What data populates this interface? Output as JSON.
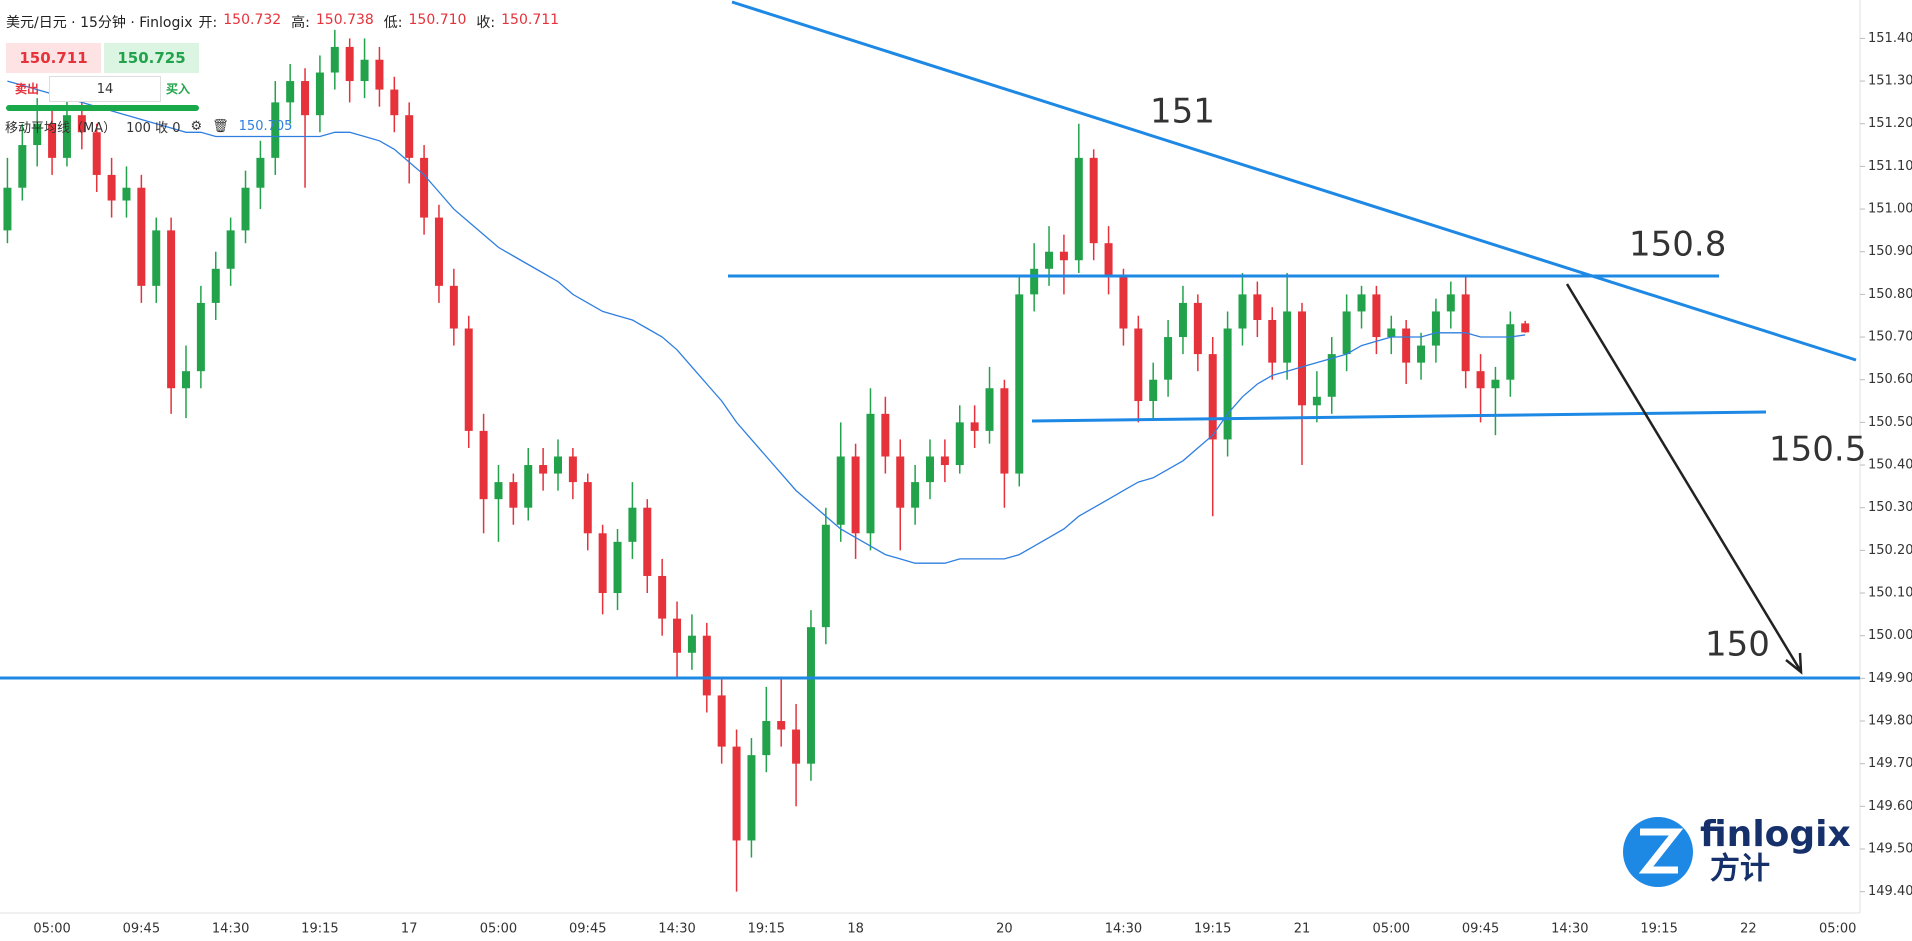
{
  "chart_data": {
    "type": "candlestick",
    "up_color": "#22a34b",
    "down_color": "#e5323b",
    "ylim": [
      149.35,
      151.49
    ],
    "yticks": [
      {
        "value": 149.4,
        "label": "149.400"
      },
      {
        "value": 149.5,
        "label": "149.500"
      },
      {
        "value": 149.6,
        "label": "149.600"
      },
      {
        "value": 149.7,
        "label": "149.700"
      },
      {
        "value": 149.8,
        "label": "149.800"
      },
      {
        "value": 149.9,
        "label": "149.900"
      },
      {
        "value": 150.0,
        "label": "150.000"
      },
      {
        "value": 150.1,
        "label": "150.100"
      },
      {
        "value": 150.2,
        "label": "150.200"
      },
      {
        "value": 150.3,
        "label": "150.300"
      },
      {
        "value": 150.4,
        "label": "150.400"
      },
      {
        "value": 150.5,
        "label": "150.500"
      },
      {
        "value": 150.6,
        "label": "150.600"
      },
      {
        "value": 150.7,
        "label": "150.700"
      },
      {
        "value": 150.8,
        "label": "150.800"
      },
      {
        "value": 150.9,
        "label": "150.900"
      },
      {
        "value": 151.0,
        "label": "151.000"
      },
      {
        "value": 151.1,
        "label": "151.100"
      },
      {
        "value": 151.2,
        "label": "151.200"
      },
      {
        "value": 151.3,
        "label": "151.300"
      },
      {
        "value": 151.4,
        "label": "151.400"
      }
    ],
    "categories": [
      null,
      null,
      null,
      "05:00",
      null,
      null,
      null,
      null,
      null,
      "09:45",
      null,
      null,
      null,
      null,
      null,
      "14:30",
      null,
      null,
      null,
      null,
      null,
      "19:15",
      null,
      null,
      null,
      null,
      null,
      "17",
      null,
      null,
      null,
      null,
      null,
      "05:00",
      null,
      null,
      null,
      null,
      null,
      "09:45",
      null,
      null,
      null,
      null,
      null,
      "14:30",
      null,
      null,
      null,
      null,
      null,
      "19:15",
      null,
      null,
      null,
      null,
      null,
      "18",
      null,
      null,
      null,
      null,
      null,
      null,
      null,
      null,
      null,
      "20",
      null,
      null,
      null,
      null,
      null,
      null,
      null,
      "14:30",
      null,
      null,
      null,
      null,
      null,
      "19:15",
      null,
      null,
      null,
      null,
      null,
      "21",
      null,
      null,
      null,
      null,
      null,
      "05:00",
      null,
      null,
      null,
      null,
      null,
      "09:45",
      null,
      null,
      null,
      null,
      null,
      "14:30",
      null,
      null,
      null,
      null,
      null,
      "19:15",
      null,
      null,
      null,
      null,
      null,
      "22",
      null,
      null,
      null,
      null,
      null,
      "05:00",
      null
    ],
    "ohlc": [
      [
        150.95,
        151.12,
        150.92,
        151.05
      ],
      [
        151.05,
        151.2,
        151.02,
        151.15
      ],
      [
        151.15,
        151.26,
        151.1,
        151.2
      ],
      [
        151.2,
        151.24,
        151.08,
        151.12
      ],
      [
        151.12,
        151.27,
        151.1,
        151.22
      ],
      [
        151.22,
        151.25,
        151.14,
        151.18
      ],
      [
        151.18,
        151.2,
        151.04,
        151.08
      ],
      [
        151.08,
        151.12,
        150.98,
        151.02
      ],
      [
        151.02,
        151.1,
        150.98,
        151.05
      ],
      [
        151.05,
        151.08,
        150.78,
        150.82
      ],
      [
        150.82,
        150.98,
        150.78,
        150.95
      ],
      [
        150.95,
        150.98,
        150.52,
        150.58
      ],
      [
        150.58,
        150.68,
        150.51,
        150.62
      ],
      [
        150.62,
        150.82,
        150.58,
        150.78
      ],
      [
        150.78,
        150.9,
        150.74,
        150.86
      ],
      [
        150.86,
        150.98,
        150.82,
        150.95
      ],
      [
        150.95,
        151.09,
        150.92,
        151.05
      ],
      [
        151.05,
        151.16,
        151.0,
        151.12
      ],
      [
        151.12,
        151.3,
        151.08,
        151.25
      ],
      [
        151.25,
        151.34,
        151.2,
        151.3
      ],
      [
        151.3,
        151.33,
        151.05,
        151.22
      ],
      [
        151.22,
        151.36,
        151.18,
        151.32
      ],
      [
        151.32,
        151.42,
        151.28,
        151.38
      ],
      [
        151.38,
        151.4,
        151.25,
        151.3
      ],
      [
        151.3,
        151.4,
        151.26,
        151.35
      ],
      [
        151.35,
        151.38,
        151.24,
        151.28
      ],
      [
        151.28,
        151.31,
        151.18,
        151.22
      ],
      [
        151.22,
        151.25,
        151.06,
        151.12
      ],
      [
        151.12,
        151.15,
        150.94,
        150.98
      ],
      [
        150.98,
        151.01,
        150.78,
        150.82
      ],
      [
        150.82,
        150.86,
        150.68,
        150.72
      ],
      [
        150.72,
        150.75,
        150.44,
        150.48
      ],
      [
        150.48,
        150.52,
        150.24,
        150.32
      ],
      [
        150.32,
        150.4,
        150.22,
        150.36
      ],
      [
        150.36,
        150.38,
        150.26,
        150.3
      ],
      [
        150.3,
        150.44,
        150.27,
        150.4
      ],
      [
        150.4,
        150.44,
        150.34,
        150.38
      ],
      [
        150.38,
        150.46,
        150.34,
        150.42
      ],
      [
        150.42,
        150.44,
        150.32,
        150.36
      ],
      [
        150.36,
        150.38,
        150.2,
        150.24
      ],
      [
        150.24,
        150.26,
        150.05,
        150.1
      ],
      [
        150.1,
        150.25,
        150.06,
        150.22
      ],
      [
        150.22,
        150.36,
        150.18,
        150.3
      ],
      [
        150.3,
        150.32,
        150.1,
        150.14
      ],
      [
        150.14,
        150.18,
        150.0,
        150.04
      ],
      [
        150.04,
        150.08,
        149.9,
        149.96
      ],
      [
        149.96,
        150.05,
        149.92,
        150.0
      ],
      [
        150.0,
        150.03,
        149.82,
        149.86
      ],
      [
        149.86,
        149.9,
        149.7,
        149.74
      ],
      [
        149.74,
        149.78,
        149.4,
        149.52
      ],
      [
        149.52,
        149.76,
        149.48,
        149.72
      ],
      [
        149.72,
        149.88,
        149.68,
        149.8
      ],
      [
        149.8,
        149.9,
        149.74,
        149.78
      ],
      [
        149.78,
        149.84,
        149.6,
        149.7
      ],
      [
        149.7,
        150.06,
        149.66,
        150.02
      ],
      [
        150.02,
        150.3,
        149.98,
        150.26
      ],
      [
        150.26,
        150.5,
        150.22,
        150.42
      ],
      [
        150.42,
        150.45,
        150.18,
        150.24
      ],
      [
        150.24,
        150.58,
        150.2,
        150.52
      ],
      [
        150.52,
        150.56,
        150.38,
        150.42
      ],
      [
        150.42,
        150.46,
        150.2,
        150.3
      ],
      [
        150.3,
        150.4,
        150.26,
        150.36
      ],
      [
        150.36,
        150.46,
        150.32,
        150.42
      ],
      [
        150.42,
        150.46,
        150.36,
        150.4
      ],
      [
        150.4,
        150.54,
        150.38,
        150.5
      ],
      [
        150.5,
        150.54,
        150.44,
        150.48
      ],
      [
        150.48,
        150.63,
        150.45,
        150.58
      ],
      [
        150.58,
        150.6,
        150.3,
        150.38
      ],
      [
        150.38,
        150.84,
        150.35,
        150.8
      ],
      [
        150.8,
        150.92,
        150.76,
        150.86
      ],
      [
        150.86,
        150.96,
        150.82,
        150.9
      ],
      [
        150.9,
        150.94,
        150.8,
        150.88
      ],
      [
        150.88,
        151.2,
        150.85,
        151.12
      ],
      [
        151.12,
        151.14,
        150.88,
        150.92
      ],
      [
        150.92,
        150.96,
        150.8,
        150.84
      ],
      [
        150.84,
        150.86,
        150.68,
        150.72
      ],
      [
        150.72,
        150.75,
        150.5,
        150.55
      ],
      [
        150.55,
        150.64,
        150.51,
        150.6
      ],
      [
        150.6,
        150.74,
        150.56,
        150.7
      ],
      [
        150.7,
        150.82,
        150.66,
        150.78
      ],
      [
        150.78,
        150.8,
        150.62,
        150.66
      ],
      [
        150.66,
        150.7,
        150.28,
        150.46
      ],
      [
        150.46,
        150.76,
        150.42,
        150.72
      ],
      [
        150.72,
        150.85,
        150.68,
        150.8
      ],
      [
        150.8,
        150.83,
        150.7,
        150.74
      ],
      [
        150.74,
        150.77,
        150.6,
        150.64
      ],
      [
        150.64,
        150.85,
        150.6,
        150.76
      ],
      [
        150.76,
        150.78,
        150.4,
        150.54
      ],
      [
        150.54,
        150.62,
        150.5,
        150.56
      ],
      [
        150.56,
        150.7,
        150.52,
        150.66
      ],
      [
        150.66,
        150.8,
        150.62,
        150.76
      ],
      [
        150.76,
        150.82,
        150.72,
        150.8
      ],
      [
        150.8,
        150.82,
        150.66,
        150.7
      ],
      [
        150.7,
        150.75,
        150.66,
        150.72
      ],
      [
        150.72,
        150.74,
        150.59,
        150.64
      ],
      [
        150.64,
        150.71,
        150.6,
        150.68
      ],
      [
        150.68,
        150.79,
        150.64,
        150.76
      ],
      [
        150.76,
        150.83,
        150.72,
        150.8
      ],
      [
        150.8,
        150.84,
        150.58,
        150.62
      ],
      [
        150.62,
        150.66,
        150.5,
        150.58
      ],
      [
        150.58,
        150.63,
        150.47,
        150.6
      ],
      [
        150.6,
        150.76,
        150.56,
        150.73
      ],
      [
        150.732,
        150.738,
        150.71,
        150.711
      ],
      null,
      null,
      null,
      null,
      null,
      null,
      null,
      null,
      null,
      null,
      null,
      null,
      null,
      null,
      null,
      null,
      null,
      null,
      null,
      null,
      null,
      null
    ],
    "ma": {
      "name": "移动平均线（MA）",
      "params": "100 收 0",
      "last_label": "150.705",
      "color": "#2f7fe0",
      "values": [
        151.3,
        151.29,
        151.28,
        151.27,
        151.26,
        151.25,
        151.24,
        151.23,
        151.22,
        151.21,
        151.2,
        151.19,
        151.18,
        151.18,
        151.17,
        151.17,
        151.17,
        151.17,
        151.17,
        151.17,
        151.17,
        151.17,
        151.18,
        151.18,
        151.17,
        151.16,
        151.14,
        151.11,
        151.08,
        151.04,
        151.0,
        150.97,
        150.94,
        150.91,
        150.89,
        150.87,
        150.85,
        150.83,
        150.8,
        150.78,
        150.76,
        150.75,
        150.74,
        150.72,
        150.7,
        150.67,
        150.63,
        150.59,
        150.55,
        150.5,
        150.46,
        150.42,
        150.38,
        150.34,
        150.31,
        150.28,
        150.25,
        150.23,
        150.21,
        150.19,
        150.18,
        150.17,
        150.17,
        150.17,
        150.18,
        150.18,
        150.18,
        150.18,
        150.19,
        150.21,
        150.23,
        150.25,
        150.28,
        150.3,
        150.32,
        150.34,
        150.36,
        150.37,
        150.39,
        150.41,
        150.44,
        150.47,
        150.52,
        150.56,
        150.59,
        150.61,
        150.62,
        150.63,
        150.64,
        150.65,
        150.66,
        150.68,
        150.69,
        150.7,
        150.7,
        150.7,
        150.71,
        150.71,
        150.71,
        150.7,
        150.7,
        150.7,
        150.705,
        null,
        null,
        null,
        null,
        null,
        null,
        null,
        null,
        null,
        null,
        null,
        null,
        null,
        null,
        null,
        null,
        null,
        null,
        null,
        null,
        null,
        null
      ]
    },
    "annotations": [
      "151",
      "150.8",
      "150.5",
      "150"
    ]
  },
  "ui": {
    "title": "美元/日元 · 15分钟 · Finlogix",
    "fields": [
      {
        "label": "开:",
        "value": "150.732"
      },
      {
        "label": "高:",
        "value": "150.738"
      },
      {
        "label": "低:",
        "value": "150.710"
      },
      {
        "label": "收:",
        "value": "150.711"
      }
    ],
    "sell_price": "150.711",
    "buy_price": "150.725",
    "sell": "卖出",
    "buy": "买入",
    "quantity": "14",
    "logo": {
      "name": "finlogix",
      "cn": "方计"
    }
  }
}
